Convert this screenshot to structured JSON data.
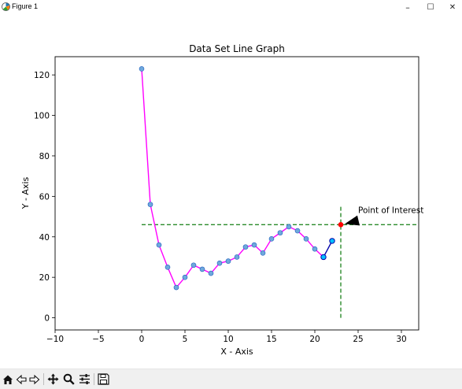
{
  "window": {
    "title": "Figure 1",
    "minimize_glyph": "–",
    "maximize_glyph": "☐",
    "close_glyph": "✕"
  },
  "toolbar": {
    "buttons": [
      "home-icon",
      "back-icon",
      "forward-icon",
      "pan-icon",
      "zoom-icon",
      "configure-subplots-icon",
      "save-icon"
    ]
  },
  "colors": {
    "main_line": "#ff00ff",
    "marker_face": "#6fa8dc",
    "marker_edge": "#1f5fbf",
    "tail_line": "#0000aa",
    "tail_marker_face": "#00bfff",
    "reference_line": "#2a8a2a",
    "point_of_interest": "#ff0000",
    "arrow": "#000000"
  },
  "chart_data": {
    "type": "line",
    "title": "Data Set Line Graph",
    "xlabel": "X - Axis",
    "ylabel": "Y - Axis",
    "xlim": [
      -10,
      32
    ],
    "ylim": [
      -6,
      129
    ],
    "xticks": [
      -10,
      -5,
      0,
      5,
      10,
      15,
      20,
      25,
      30
    ],
    "yticks": [
      0,
      20,
      40,
      60,
      80,
      100,
      120
    ],
    "grid": false,
    "series": [
      {
        "x": [
          0,
          1,
          2,
          3,
          4,
          5,
          6,
          7,
          8,
          9,
          10,
          11,
          12,
          13,
          14,
          15,
          16,
          17,
          18,
          19,
          20,
          21
        ],
        "y": [
          123,
          56,
          36,
          25,
          15,
          20,
          26,
          24,
          22,
          27,
          28,
          30,
          35,
          36,
          32,
          39,
          42,
          45,
          43,
          39,
          34,
          30
        ]
      },
      {
        "x": [
          21,
          22
        ],
        "y": [
          30,
          38
        ]
      }
    ],
    "reference_lines": {
      "horizontal": {
        "y": 46,
        "xmin": 0,
        "xmax": 32
      },
      "vertical": {
        "x": 23,
        "ymin": 0,
        "ymax": 56
      }
    },
    "point_of_interest": {
      "x": 23,
      "y": 46
    },
    "annotation": {
      "text": "Point of Interest",
      "text_x": 25,
      "text_y": 49
    }
  }
}
